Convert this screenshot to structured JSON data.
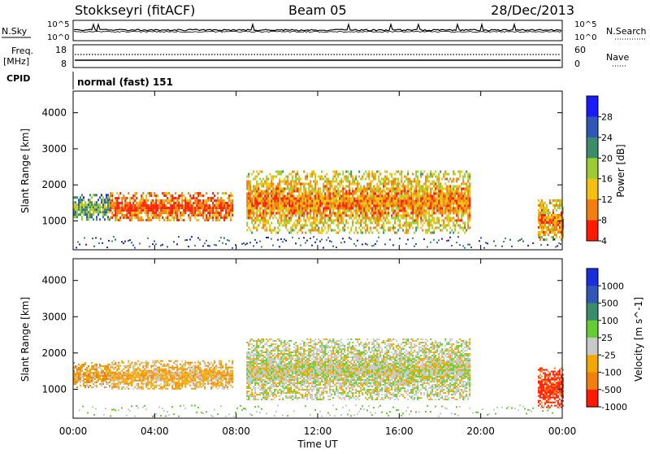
{
  "header": {
    "station": "Stokkseyri (fitACF)",
    "beam": "Beam 05",
    "date": "28/Dec/2013"
  },
  "top_panels": {
    "nsky_label": "N.Sky",
    "nsky_ticks": [
      "10^5",
      "10^0"
    ],
    "nsearch_label": "N.Search",
    "nsearch_ticks": [
      "10^5",
      "10^0"
    ],
    "freq_label_1": "Freq.",
    "freq_label_2": "[MHz]",
    "freq_ticks": [
      "18",
      "8"
    ],
    "nave_label": "Nave",
    "nave_ticks": [
      "60",
      "0"
    ],
    "cpid_label": "CPID",
    "cpid_value": "normal (fast) 151"
  },
  "chart_data": [
    {
      "type": "heatmap",
      "name": "power-panel",
      "ylabel": "Slant Range [km]",
      "yticks": [
        "4000",
        "3000",
        "2000",
        "1000"
      ],
      "ylim": [
        200,
        4600
      ],
      "colorbar_label": "Power [dB]",
      "colorbar_ticks": [
        "28",
        "24",
        "20",
        "16",
        "12",
        "8",
        "4"
      ],
      "colors": [
        "#1a1aff",
        "#2f57b8",
        "#3a8c6a",
        "#9acc33",
        "#f4c10f",
        "#f27f0c",
        "#ff1a00"
      ],
      "bands": [
        {
          "t0": 0.0,
          "t1": 1.8,
          "r0": 1050,
          "r1": 1750,
          "level": 3
        },
        {
          "t0": 1.8,
          "t1": 7.8,
          "r0": 1000,
          "r1": 1800,
          "level": 6
        },
        {
          "t0": 8.5,
          "t1": 19.5,
          "r0": 700,
          "r1": 2400,
          "level": 5
        },
        {
          "t0": 22.8,
          "t1": 24.0,
          "r0": 500,
          "r1": 1600,
          "level": 5
        }
      ]
    },
    {
      "type": "heatmap",
      "name": "velocity-panel",
      "ylabel": "Slant Range [km]",
      "yticks": [
        "4000",
        "3000",
        "2000",
        "1000"
      ],
      "ylim": [
        200,
        4600
      ],
      "colorbar_label": "Velocity [m s^-1]",
      "colorbar_ticks": [
        "1000",
        "500",
        "100",
        "25",
        "-25",
        "-100",
        "-500",
        "-1000"
      ],
      "colors": [
        "#1a2ee0",
        "#2f57b8",
        "#3a8c6a",
        "#66cc33",
        "#c8c8c8",
        "#f2a700",
        "#f27f0c",
        "#ff1a00"
      ],
      "bands": [
        {
          "t0": 0.0,
          "t1": 1.8,
          "r0": 1050,
          "r1": 1750,
          "level": 5
        },
        {
          "t0": 1.8,
          "t1": 7.8,
          "r0": 1000,
          "r1": 1800,
          "level": 5
        },
        {
          "t0": 8.5,
          "t1": 19.5,
          "r0": 700,
          "r1": 2400,
          "level": 4
        },
        {
          "t0": 22.8,
          "t1": 24.0,
          "r0": 500,
          "r1": 1600,
          "level": 7
        }
      ]
    }
  ],
  "xaxis": {
    "label": "Time UT",
    "ticks": [
      "00:00",
      "04:00",
      "08:00",
      "12:00",
      "16:00",
      "20:00",
      "00:00"
    ],
    "xlim": [
      0,
      24
    ]
  }
}
